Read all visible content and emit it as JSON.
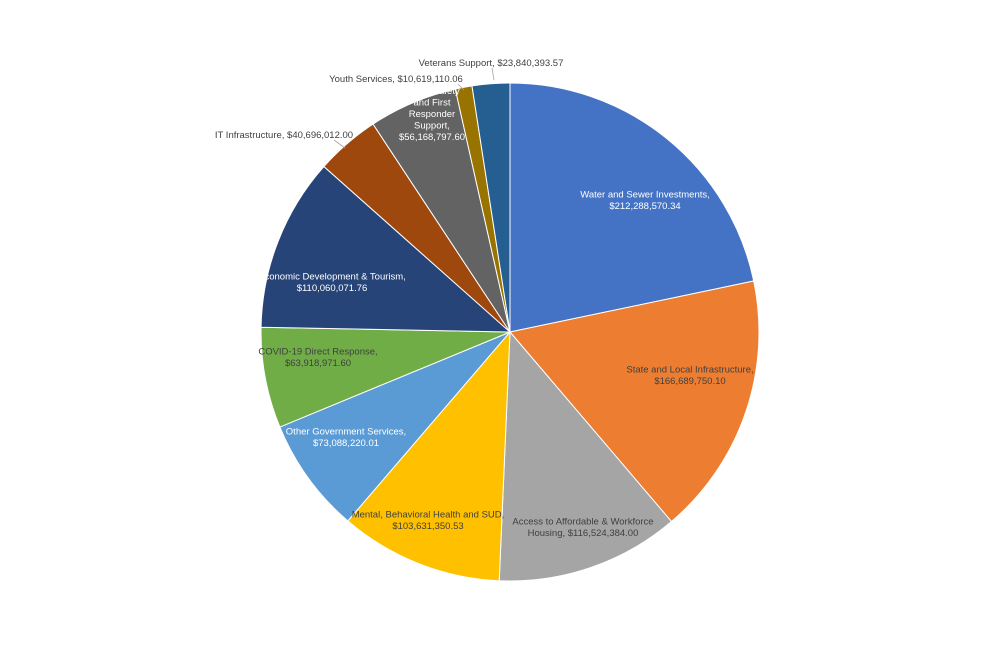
{
  "chart_data": {
    "type": "pie",
    "title": "",
    "start_angle_deg": 0,
    "direction": "clockwise",
    "slices": [
      {
        "label": "Water and Sewer Investments,",
        "value_text": "$212,288,570.34",
        "value": 212288570.34,
        "color": "#4472C4"
      },
      {
        "label": "State and Local Infrastructure,",
        "value_text": "$166,689,750.10",
        "value": 166689750.1,
        "color": "#ED7D31"
      },
      {
        "label": "Access to Affordable & Workforce Housing,",
        "value_text": "$116,524,384.00",
        "value": 116524384.0,
        "color": "#A5A5A5"
      },
      {
        "label": "Mental, Behavioral Health and SUD,",
        "value_text": "$103,631,350.53",
        "value": 103631350.53,
        "color": "#FFC000"
      },
      {
        "label": "Other Government Services,",
        "value_text": "$73,088,220.01",
        "value": 73088220.01,
        "color": "#5B9BD5"
      },
      {
        "label": "COVID-19 Direct Response,",
        "value_text": "$63,918,971.60",
        "value": 63918971.6,
        "color": "#70AD47"
      },
      {
        "label": "Economic Development & Tourism,",
        "value_text": "$110,060,071.76",
        "value": 110060071.76,
        "color": "#264478"
      },
      {
        "label": "IT Infrastructure,",
        "value_text": "$40,696,012.00",
        "value": 40696012.0,
        "color": "#9E480E"
      },
      {
        "label": "Public Safety and First Responder Support,",
        "value_text": "$56,168,797.60",
        "value": 56168797.6,
        "color": "#636363"
      },
      {
        "label": "Youth Services,",
        "value_text": "$10,619,110.06",
        "value": 10619110.06,
        "color": "#997300"
      },
      {
        "label": "Veterans Support,",
        "value_text": "$23,840,393.57",
        "value": 23840393.57,
        "color": "#255E91"
      }
    ]
  }
}
